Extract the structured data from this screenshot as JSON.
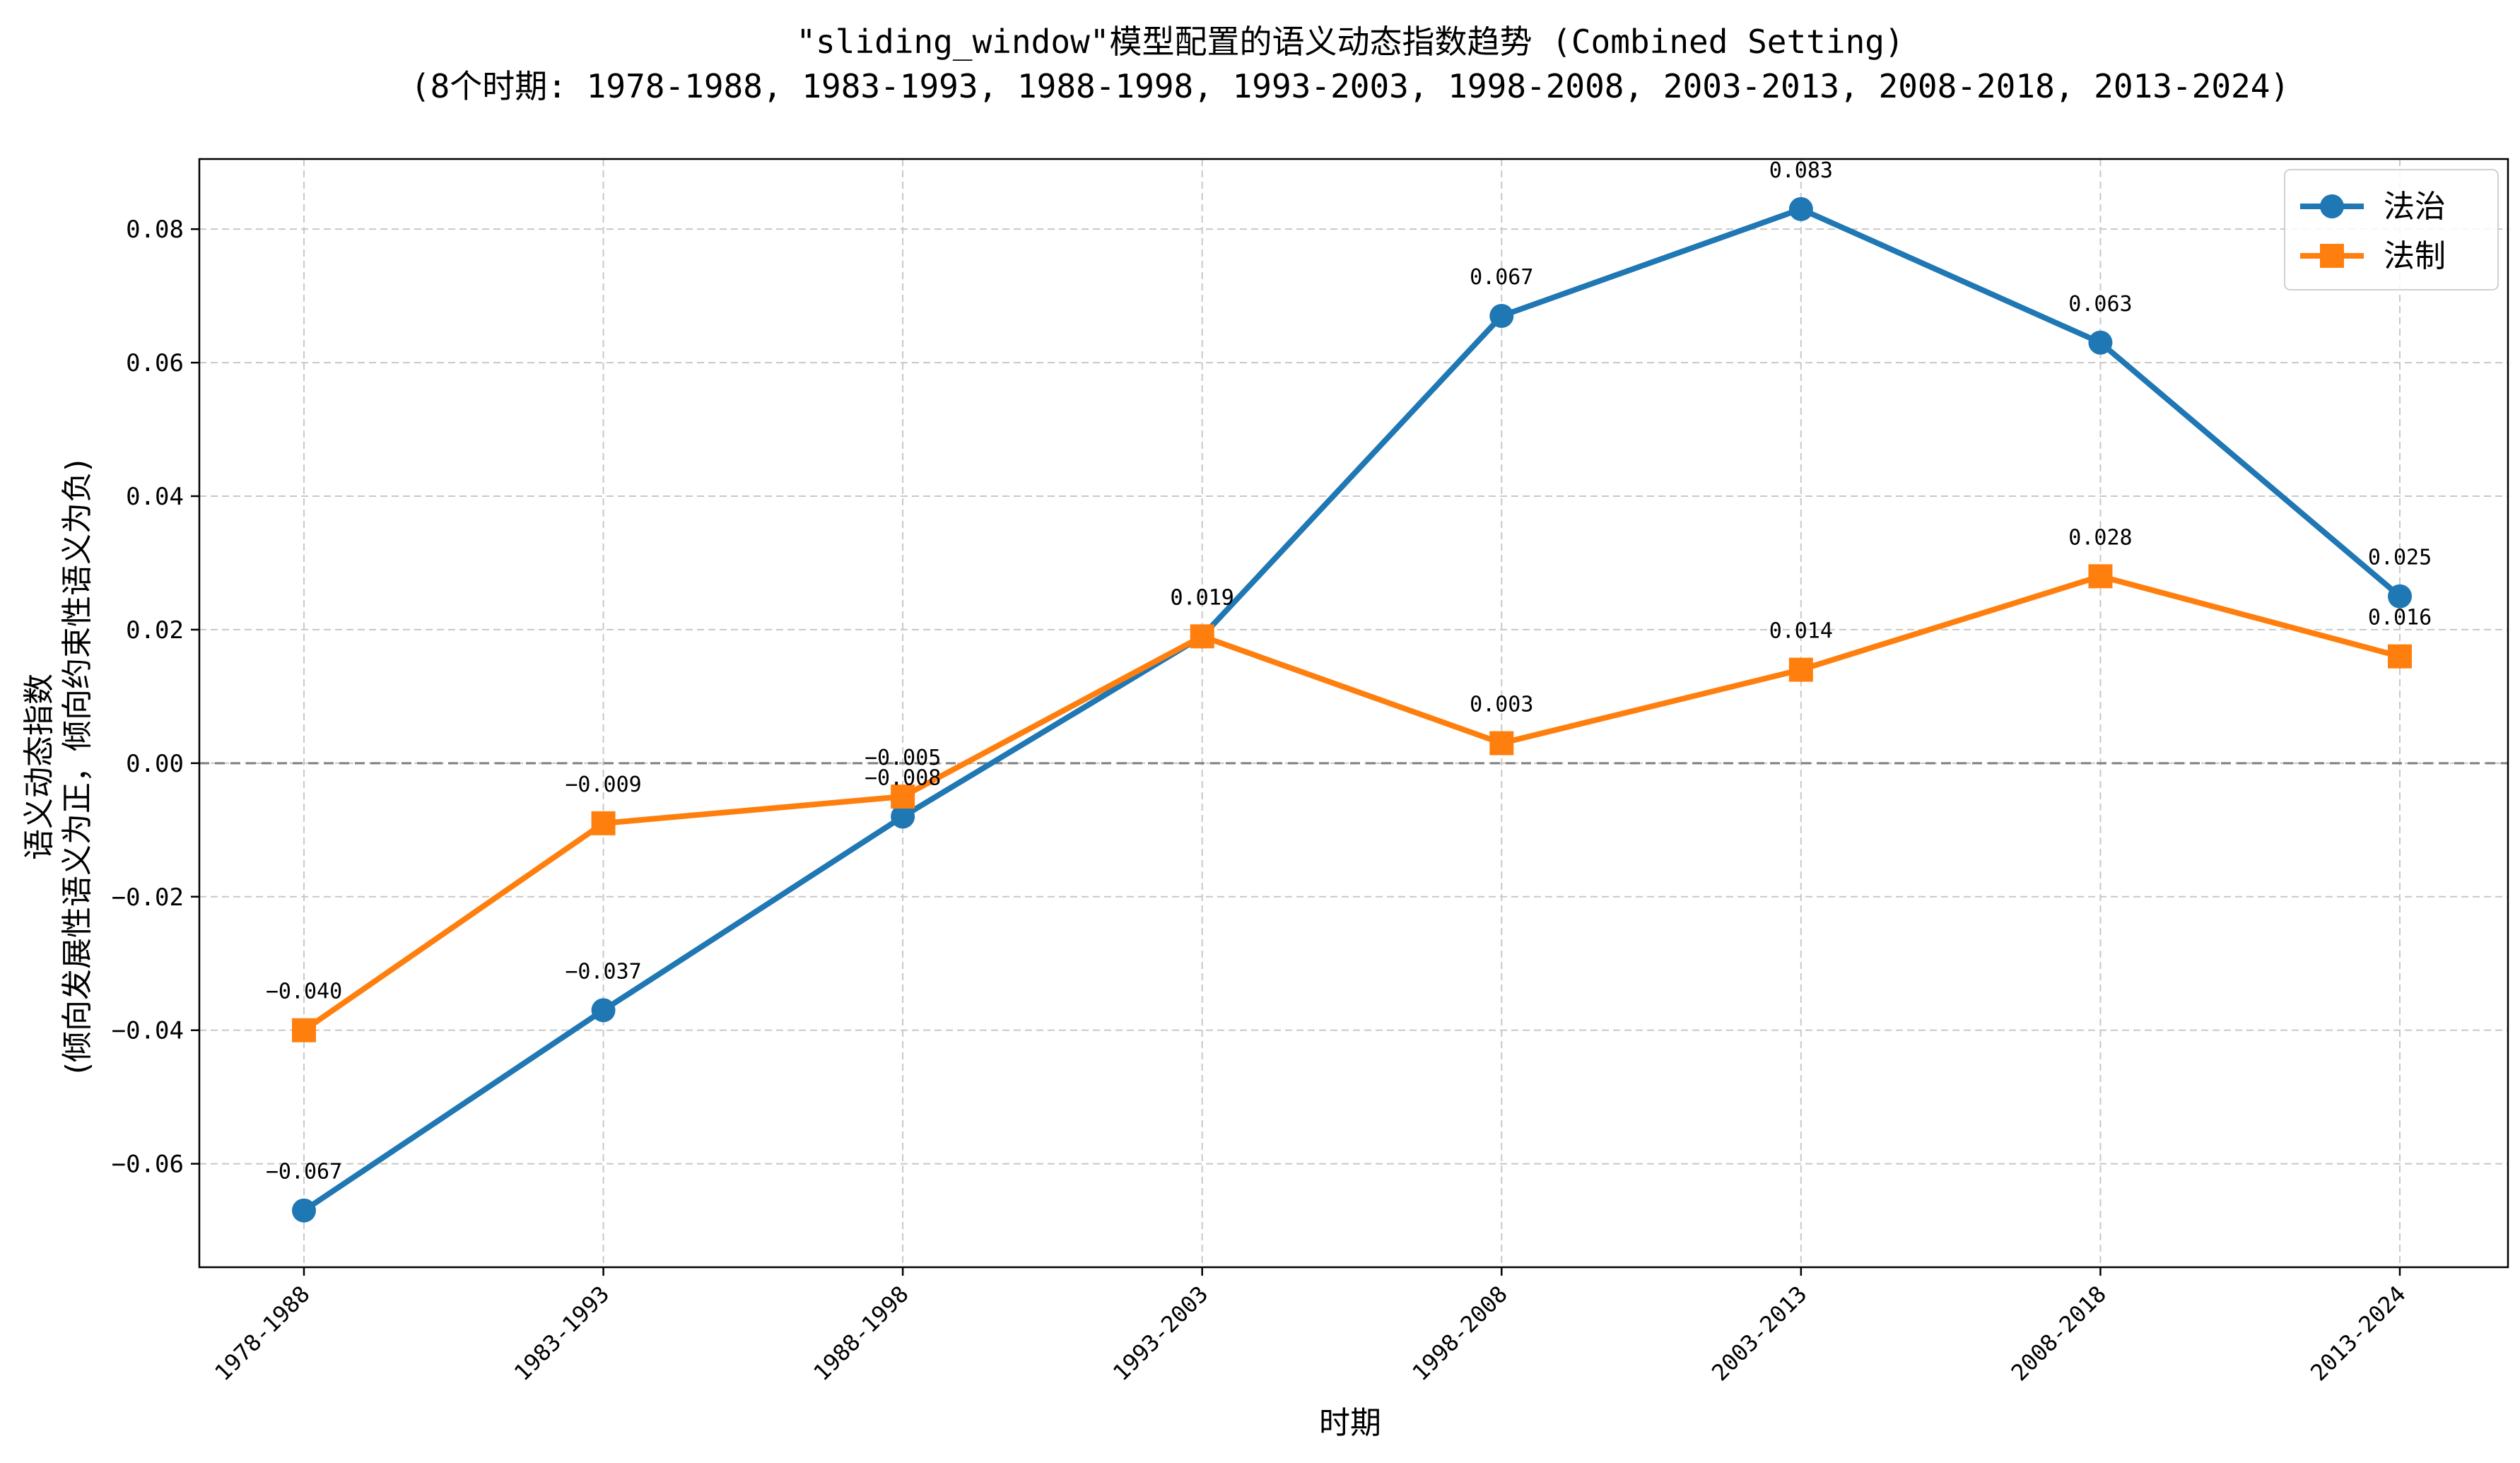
{
  "chart_data": {
    "type": "line",
    "title": "\"sliding_window\"模型配置的语义动态指数趋势 (Combined Setting)",
    "subtitle": "(8个时期: 1978-1988, 1983-1993, 1988-1998, 1993-2003, 1998-2008, 2003-2013, 2008-2018, 2013-2024)",
    "xlabel": "时期",
    "ylabel_line1": "语义动态指数",
    "ylabel_line2": "(倾向发展性语义为正，倾向约束性语义为负)",
    "categories": [
      "1978-1988",
      "1983-1993",
      "1988-1998",
      "1993-2003",
      "1998-2008",
      "2003-2013",
      "2008-2018",
      "2013-2024"
    ],
    "yticks": [
      -0.06,
      -0.04,
      -0.02,
      0.0,
      0.02,
      0.04,
      0.06,
      0.08
    ],
    "ytick_labels": [
      "−0.06",
      "−0.04",
      "−0.02",
      "0.00",
      "0.02",
      "0.04",
      "0.06",
      "0.08"
    ],
    "ylim": [
      -0.0755,
      0.0905
    ],
    "grid": true,
    "zero_line": true,
    "legend_position": "top-right",
    "series": [
      {
        "name": "法治",
        "color": "#1f77b4",
        "marker": "circle",
        "values": [
          -0.067,
          -0.037,
          -0.008,
          0.019,
          0.067,
          0.083,
          0.063,
          0.025
        ],
        "labels": [
          "−0.067",
          "−0.037",
          "−0.008",
          "0.019",
          "0.067",
          "0.083",
          "0.063",
          "0.025"
        ]
      },
      {
        "name": "法制",
        "color": "#ff7f0e",
        "marker": "square",
        "values": [
          -0.04,
          -0.009,
          -0.005,
          0.019,
          0.003,
          0.014,
          0.028,
          0.016
        ],
        "labels": [
          "−0.040",
          "−0.009",
          "−0.005",
          "0.019",
          "0.003",
          "0.014",
          "0.028",
          "0.016"
        ]
      }
    ]
  }
}
